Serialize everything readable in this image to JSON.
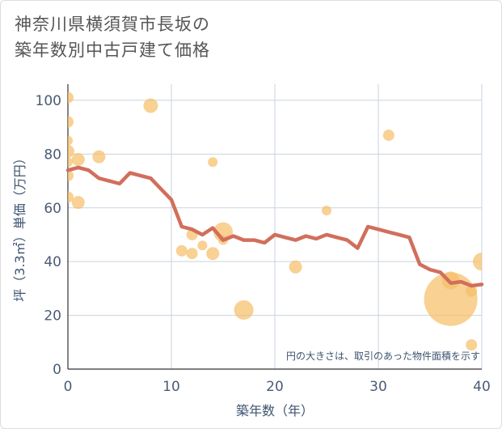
{
  "title_line1": "神奈川県横須賀市長坂の",
  "title_line2": "築年数別中古戸建て価格",
  "chart_data": {
    "type": "scatter",
    "xlabel": "築年数（年）",
    "ylabel": "坪（3.3㎡）単価（万円）",
    "xlim": [
      0,
      40
    ],
    "ylim": [
      0,
      106
    ],
    "xticks": [
      0,
      10,
      20,
      30,
      40
    ],
    "yticks": [
      0,
      20,
      40,
      60,
      80,
      100
    ],
    "grid": true,
    "note": "円の大きさは、取引のあった物件面積を示す",
    "bubble_color": "#f5bf6a",
    "line_color": "#d16f5c",
    "bubbles": [
      {
        "x": 0,
        "y": 101,
        "s": 7
      },
      {
        "x": 0,
        "y": 92,
        "s": 7
      },
      {
        "x": 0,
        "y": 85,
        "s": 6
      },
      {
        "x": 0,
        "y": 81,
        "s": 8
      },
      {
        "x": 0,
        "y": 77,
        "s": 6
      },
      {
        "x": 0,
        "y": 72,
        "s": 7
      },
      {
        "x": 0,
        "y": 64,
        "s": 7
      },
      {
        "x": 1,
        "y": 78,
        "s": 8
      },
      {
        "x": 1,
        "y": 62,
        "s": 8
      },
      {
        "x": 3,
        "y": 79,
        "s": 8
      },
      {
        "x": 8,
        "y": 98,
        "s": 9
      },
      {
        "x": 11,
        "y": 44,
        "s": 7
      },
      {
        "x": 12,
        "y": 50,
        "s": 7
      },
      {
        "x": 12,
        "y": 43,
        "s": 7
      },
      {
        "x": 13,
        "y": 46,
        "s": 6
      },
      {
        "x": 14,
        "y": 77,
        "s": 6
      },
      {
        "x": 14,
        "y": 43,
        "s": 8
      },
      {
        "x": 15,
        "y": 51,
        "s": 12
      },
      {
        "x": 15,
        "y": 48,
        "s": 6
      },
      {
        "x": 17,
        "y": 22,
        "s": 12
      },
      {
        "x": 22,
        "y": 38,
        "s": 8
      },
      {
        "x": 25,
        "y": 59,
        "s": 6
      },
      {
        "x": 31,
        "y": 87,
        "s": 7
      },
      {
        "x": 37,
        "y": 26,
        "s": 33
      },
      {
        "x": 37,
        "y": 33,
        "s": 11
      },
      {
        "x": 39,
        "y": 29,
        "s": 7
      },
      {
        "x": 39,
        "y": 9,
        "s": 7
      },
      {
        "x": 40,
        "y": 40,
        "s": 11
      }
    ],
    "trend": {
      "x": [
        0,
        1,
        2,
        3,
        4,
        5,
        6,
        7,
        8,
        9,
        10,
        11,
        12,
        13,
        14,
        15,
        16,
        17,
        18,
        19,
        20,
        21,
        22,
        23,
        24,
        25,
        26,
        27,
        28,
        29,
        30,
        31,
        32,
        33,
        34,
        35,
        36,
        37,
        38,
        39,
        40
      ],
      "y": [
        74,
        75,
        74,
        71,
        70,
        69,
        73,
        72,
        71,
        67,
        63,
        53,
        52,
        50,
        52.5,
        48,
        49.5,
        48,
        48,
        47,
        50,
        49,
        48,
        49.5,
        48.5,
        50,
        49,
        48,
        45,
        53,
        52,
        51,
        50,
        49,
        39,
        37,
        36,
        32,
        32.5,
        31,
        31.5
      ]
    }
  }
}
